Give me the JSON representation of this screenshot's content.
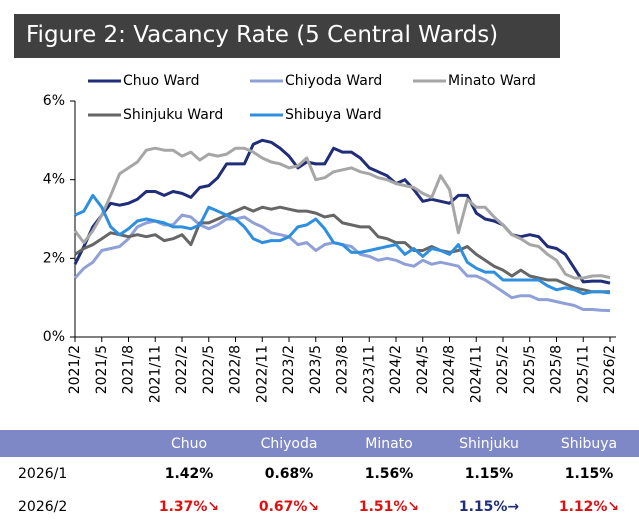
{
  "chart_data": {
    "type": "line",
    "title": "Figure 2: Vacancy Rate (5 Central Wards)",
    "categories": [
      "2021/2",
      null,
      null,
      "2021/5",
      null,
      null,
      "2021/8",
      null,
      null,
      "2021/11",
      null,
      null,
      "2022/2",
      null,
      null,
      "2022/5",
      null,
      null,
      "2022/8",
      null,
      null,
      "2022/11",
      null,
      null,
      "2023/2",
      null,
      null,
      "2023/5",
      null,
      null,
      "2023/8",
      null,
      null,
      "2023/11",
      null,
      null,
      "2024/2",
      null,
      null,
      "2024/5",
      null,
      null,
      "2024/8",
      null,
      null,
      "2024/11",
      null,
      null,
      "2025/2",
      null,
      null,
      "2025/5",
      null,
      null,
      "2025/8",
      null,
      null,
      "2025/11",
      null,
      null,
      "2026/2"
    ],
    "series": [
      {
        "name": "Chuo Ward",
        "color": "#1f2d7a",
        "values": [
          1.85,
          2.3,
          2.8,
          3.1,
          3.4,
          3.35,
          3.4,
          3.5,
          3.7,
          3.7,
          3.6,
          3.7,
          3.65,
          3.55,
          3.8,
          3.85,
          4.05,
          4.4,
          4.4,
          4.4,
          4.9,
          5.0,
          4.95,
          4.8,
          4.6,
          4.3,
          4.45,
          4.4,
          4.4,
          4.8,
          4.7,
          4.7,
          4.55,
          4.3,
          4.2,
          4.1,
          3.9,
          4.0,
          3.75,
          3.45,
          3.5,
          3.45,
          3.4,
          3.6,
          3.6,
          3.15,
          3.0,
          2.95,
          2.85,
          2.6,
          2.55,
          2.6,
          2.55,
          2.3,
          2.25,
          2.1,
          1.75,
          1.4,
          1.42,
          1.42,
          1.37
        ]
      },
      {
        "name": "Chiyoda Ward",
        "color": "#8fa0d8",
        "values": [
          1.5,
          1.75,
          1.9,
          2.2,
          2.25,
          2.3,
          2.5,
          2.8,
          2.9,
          2.95,
          2.85,
          2.85,
          3.1,
          3.05,
          2.85,
          2.75,
          2.85,
          3.0,
          3.0,
          3.05,
          2.9,
          2.8,
          2.65,
          2.6,
          2.55,
          2.35,
          2.4,
          2.2,
          2.35,
          2.4,
          2.35,
          2.3,
          2.1,
          2.05,
          1.95,
          2.0,
          1.95,
          1.85,
          1.8,
          1.95,
          1.85,
          1.9,
          1.85,
          1.8,
          1.55,
          1.55,
          1.45,
          1.3,
          1.15,
          1.0,
          1.05,
          1.05,
          0.95,
          0.95,
          0.9,
          0.85,
          0.8,
          0.7,
          0.7,
          0.68,
          0.67
        ]
      },
      {
        "name": "Minato Ward",
        "color": "#a6a6a6",
        "values": [
          2.7,
          2.4,
          2.7,
          3.1,
          3.6,
          4.15,
          4.3,
          4.45,
          4.75,
          4.8,
          4.75,
          4.75,
          4.6,
          4.7,
          4.5,
          4.65,
          4.6,
          4.65,
          4.8,
          4.8,
          4.7,
          4.55,
          4.45,
          4.4,
          4.3,
          4.35,
          4.55,
          4.0,
          4.05,
          4.2,
          4.25,
          4.3,
          4.2,
          4.15,
          4.05,
          4.0,
          3.9,
          3.85,
          3.8,
          3.65,
          3.55,
          4.1,
          3.75,
          2.65,
          3.5,
          3.3,
          3.3,
          3.05,
          2.85,
          2.6,
          2.5,
          2.35,
          2.3,
          2.1,
          1.95,
          1.6,
          1.5,
          1.5,
          1.55,
          1.56,
          1.51
        ]
      },
      {
        "name": "Shinjuku Ward",
        "color": "#666666",
        "values": [
          2.1,
          2.25,
          2.35,
          2.5,
          2.65,
          2.6,
          2.55,
          2.6,
          2.55,
          2.6,
          2.45,
          2.5,
          2.6,
          2.35,
          2.9,
          2.9,
          3.0,
          3.1,
          3.2,
          3.3,
          3.2,
          3.3,
          3.25,
          3.3,
          3.25,
          3.2,
          3.2,
          3.15,
          3.05,
          3.1,
          2.9,
          2.85,
          2.8,
          2.8,
          2.55,
          2.5,
          2.4,
          2.4,
          2.2,
          2.2,
          2.3,
          2.2,
          2.15,
          2.2,
          2.3,
          2.1,
          1.95,
          1.8,
          1.7,
          1.55,
          1.7,
          1.55,
          1.5,
          1.45,
          1.45,
          1.35,
          1.25,
          1.2,
          1.15,
          1.15,
          1.15
        ]
      },
      {
        "name": "Shibuya Ward",
        "color": "#2e8fdf",
        "values": [
          3.1,
          3.2,
          3.6,
          3.3,
          2.8,
          2.6,
          2.75,
          2.95,
          3.0,
          2.95,
          2.9,
          2.8,
          2.8,
          2.75,
          2.85,
          3.3,
          3.2,
          3.1,
          3.0,
          2.8,
          2.5,
          2.4,
          2.45,
          2.45,
          2.55,
          2.8,
          2.85,
          3.0,
          2.75,
          2.4,
          2.35,
          2.15,
          2.15,
          2.2,
          2.25,
          2.3,
          2.35,
          2.1,
          2.25,
          2.05,
          2.25,
          2.2,
          2.1,
          2.35,
          1.9,
          1.75,
          1.65,
          1.65,
          1.45,
          1.45,
          1.45,
          1.45,
          1.45,
          1.3,
          1.2,
          1.25,
          1.2,
          1.1,
          1.15,
          1.15,
          1.12
        ]
      }
    ],
    "ylim": [
      0,
      6
    ],
    "yticks": [
      {
        "value": 0,
        "label": "0%"
      },
      {
        "value": 2,
        "label": "2%"
      },
      {
        "value": 4,
        "label": "4%"
      },
      {
        "value": 6,
        "label": "6%"
      }
    ],
    "grid": false
  },
  "table": {
    "header": [
      "Chuo",
      "Chiyoda",
      "Minato",
      "Shinjuku",
      "Shibuya"
    ],
    "rows": [
      [
        "2026/1",
        "1.42%",
        "0.68%",
        "1.56%",
        "1.15%",
        "1.15%"
      ],
      [
        "2026/2",
        "1.37%↘",
        "0.67%↘",
        "1.51%↘",
        "1.15%→",
        "1.12%↘"
      ]
    ]
  }
}
